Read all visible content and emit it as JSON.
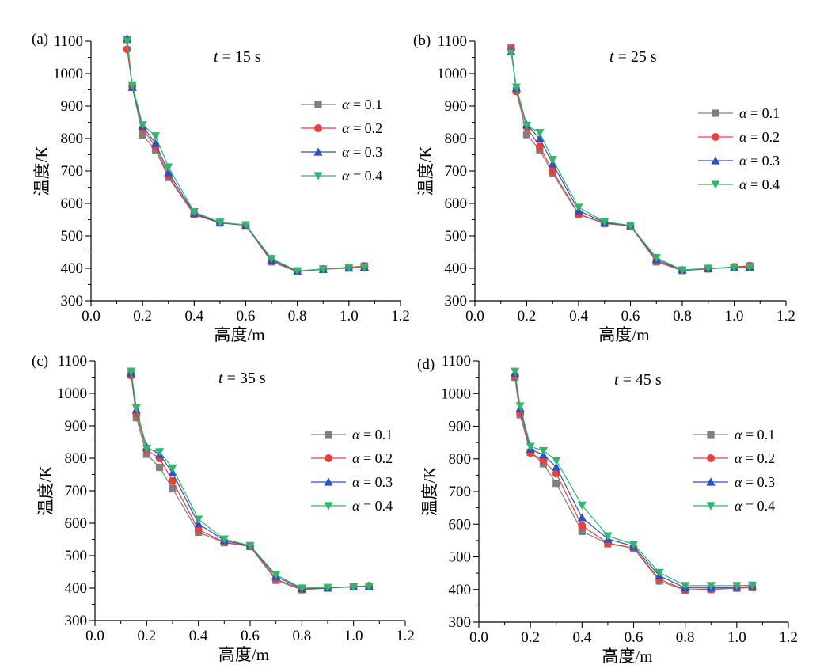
{
  "colors": {
    "0.1": "#7f7f7f",
    "0.2": "#e8413c",
    "0.3": "#2f4fbf",
    "0.4": "#2db86e"
  },
  "chart_data": [
    {
      "type": "line",
      "panel_label": "(a)",
      "time_label": "t = 15 s",
      "xlabel": "高度/m",
      "ylabel": "温度/K",
      "xlim": [
        0.0,
        1.2
      ],
      "ylim": [
        300,
        1100
      ],
      "xticks": [
        "0.0",
        "0.2",
        "0.4",
        "0.6",
        "0.8",
        "1.0",
        "1.2"
      ],
      "yticks": [
        "300",
        "400",
        "500",
        "600",
        "700",
        "800",
        "900",
        "1000",
        "1100"
      ],
      "x": [
        0.14,
        0.16,
        0.2,
        0.25,
        0.3,
        0.4,
        0.5,
        0.6,
        0.7,
        0.8,
        0.9,
        1.0,
        1.06
      ],
      "series": [
        {
          "name": "α = 0.1",
          "marker": "square",
          "values": [
            1105,
            960,
            810,
            765,
            680,
            565,
            540,
            533,
            420,
            390,
            397,
            403,
            407
          ]
        },
        {
          "name": "α = 0.2",
          "marker": "circle",
          "values": [
            1075,
            962,
            830,
            775,
            685,
            566,
            540,
            533,
            422,
            390,
            398,
            403,
            407
          ]
        },
        {
          "name": "α = 0.3",
          "marker": "triangle-up",
          "values": [
            1108,
            958,
            838,
            785,
            695,
            570,
            541,
            533,
            426,
            391,
            397,
            401,
            404
          ]
        },
        {
          "name": "α = 0.4",
          "marker": "triangle-down",
          "values": [
            1100,
            965,
            842,
            808,
            712,
            574,
            542,
            534,
            430,
            392,
            398,
            402,
            403
          ]
        }
      ]
    },
    {
      "type": "line",
      "panel_label": "(b)",
      "time_label": "t = 25 s",
      "xlabel": "高度/m",
      "ylabel": "温度/K",
      "xlim": [
        0.0,
        1.2
      ],
      "ylim": [
        300,
        1100
      ],
      "xticks": [
        "0.0",
        "0.2",
        "0.4",
        "0.6",
        "0.8",
        "1.0",
        "1.2"
      ],
      "yticks": [
        "300",
        "400",
        "500",
        "600",
        "700",
        "800",
        "900",
        "1000",
        "1100"
      ],
      "x": [
        0.14,
        0.16,
        0.2,
        0.25,
        0.3,
        0.4,
        0.5,
        0.6,
        0.7,
        0.8,
        0.9,
        1.0,
        1.06
      ],
      "series": [
        {
          "name": "α = 0.1",
          "marker": "square",
          "values": [
            1080,
            948,
            812,
            765,
            692,
            566,
            538,
            531,
            420,
            393,
            398,
            404,
            407
          ]
        },
        {
          "name": "α = 0.2",
          "marker": "circle",
          "values": [
            1075,
            945,
            835,
            775,
            700,
            567,
            539,
            531,
            422,
            394,
            399,
            404,
            408
          ]
        },
        {
          "name": "α = 0.3",
          "marker": "triangle-up",
          "values": [
            1068,
            955,
            842,
            800,
            722,
            578,
            541,
            532,
            427,
            395,
            399,
            403,
            404
          ]
        },
        {
          "name": "α = 0.4",
          "marker": "triangle-down",
          "values": [
            1063,
            958,
            840,
            818,
            735,
            588,
            544,
            532,
            433,
            395,
            400,
            402,
            403
          ]
        }
      ]
    },
    {
      "type": "line",
      "panel_label": "(c)",
      "time_label": "t = 35 s",
      "xlabel": "高度/m",
      "ylabel": "温度/K",
      "xlim": [
        0.0,
        1.2
      ],
      "ylim": [
        300,
        1100
      ],
      "xticks": [
        "0.0",
        "0.2",
        "0.4",
        "0.6",
        "0.8",
        "1.0",
        "1.2"
      ],
      "yticks": [
        "300",
        "400",
        "500",
        "600",
        "700",
        "800",
        "900",
        "1000",
        "1100"
      ],
      "x": [
        0.14,
        0.16,
        0.2,
        0.25,
        0.3,
        0.4,
        0.5,
        0.6,
        0.7,
        0.8,
        0.9,
        1.0,
        1.06
      ],
      "series": [
        {
          "name": "α = 0.1",
          "marker": "square",
          "values": [
            1060,
            925,
            812,
            772,
            706,
            572,
            540,
            528,
            424,
            395,
            400,
            404,
            406
          ]
        },
        {
          "name": "α = 0.2",
          "marker": "circle",
          "values": [
            1055,
            938,
            825,
            800,
            730,
            580,
            542,
            529,
            428,
            396,
            401,
            405,
            407
          ]
        },
        {
          "name": "α = 0.3",
          "marker": "triangle-up",
          "values": [
            1063,
            950,
            835,
            812,
            755,
            598,
            547,
            530,
            436,
            398,
            401,
            404,
            406
          ]
        },
        {
          "name": "α = 0.4",
          "marker": "triangle-down",
          "values": [
            1068,
            955,
            830,
            820,
            770,
            612,
            551,
            531,
            441,
            400,
            402,
            404,
            405
          ]
        }
      ]
    },
    {
      "type": "line",
      "panel_label": "(d)",
      "time_label": "t = 45 s",
      "xlabel": "高度/m",
      "ylabel": "温度/K",
      "xlim": [
        0.0,
        1.2
      ],
      "ylim": [
        300,
        1100
      ],
      "xticks": [
        "0.0",
        "0.2",
        "0.4",
        "0.6",
        "0.8",
        "1.0",
        "1.2"
      ],
      "yticks": [
        "300",
        "400",
        "500",
        "600",
        "700",
        "800",
        "900",
        "1000",
        "1100"
      ],
      "x": [
        0.14,
        0.16,
        0.2,
        0.25,
        0.3,
        0.4,
        0.5,
        0.6,
        0.7,
        0.8,
        0.9,
        1.0,
        1.06
      ],
      "series": [
        {
          "name": "α = 0.1",
          "marker": "square",
          "values": [
            1050,
            935,
            820,
            785,
            725,
            578,
            540,
            527,
            426,
            398,
            400,
            404,
            406
          ]
        },
        {
          "name": "α = 0.2",
          "marker": "circle",
          "values": [
            1055,
            940,
            818,
            795,
            755,
            595,
            542,
            527,
            432,
            399,
            401,
            405,
            407
          ]
        },
        {
          "name": "α = 0.3",
          "marker": "triangle-up",
          "values": [
            1063,
            955,
            830,
            812,
            775,
            620,
            555,
            532,
            442,
            405,
            405,
            407,
            409
          ]
        },
        {
          "name": "α = 0.4",
          "marker": "triangle-down",
          "values": [
            1068,
            962,
            838,
            825,
            795,
            658,
            564,
            538,
            452,
            412,
            412,
            412,
            413
          ]
        }
      ]
    }
  ]
}
